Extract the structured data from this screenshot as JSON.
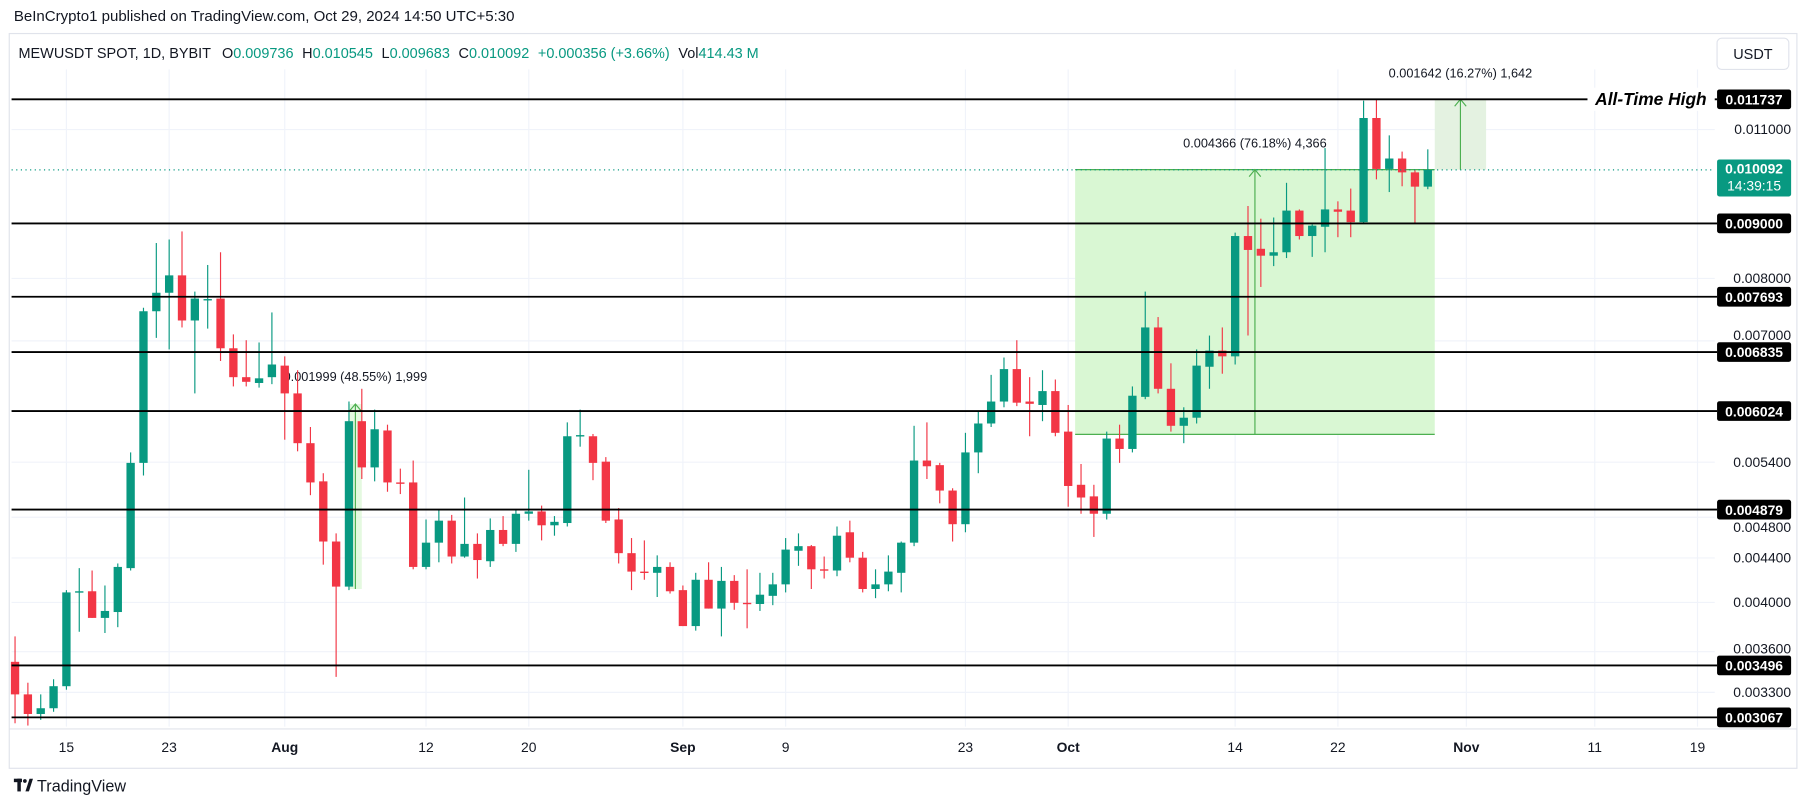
{
  "header": {
    "published": "BeInCrypto1 published on TradingView.com, Oct 29, 2024 14:50 UTC+5:30"
  },
  "legend": {
    "symbol": "MEWUSDT SPOT, 1D, BYBIT",
    "open_label": "O",
    "open": "0.009736",
    "high_label": "H",
    "high": "0.010545",
    "low_label": "L",
    "low": "0.009683",
    "close_label": "C",
    "close": "0.010092",
    "change": "+0.000356 (+3.66%)",
    "volume_label": "Vol",
    "volume": "414.43 M"
  },
  "currency_button": "USDT",
  "footer": {
    "logo_text": "TradingView",
    "logo_icon": "tradingview-logo-icon"
  },
  "chart_data": {
    "type": "candlestick",
    "title": "",
    "xlabel": "",
    "ylabel": "",
    "y_scale": "log",
    "ylim": [
      0.00303,
      0.0121
    ],
    "grid": true,
    "colors": {
      "up": "#089981",
      "down": "#f23645",
      "level_line": "#000000",
      "measure_fill": "#d9f7d3",
      "measure_line": "#4caf50",
      "measure_fill_alt": "#e4f2e1"
    },
    "y_ticks": [
      "0.011000",
      "0.008000",
      "0.007000",
      "0.005400",
      "0.004800",
      "0.004400",
      "0.004000",
      "0.003600",
      "0.003300"
    ],
    "x_ticks": [
      {
        "label": "15",
        "date": "2024-07-15",
        "bold": false
      },
      {
        "label": "23",
        "date": "2024-07-23",
        "bold": false
      },
      {
        "label": "Aug",
        "date": "2024-08-01",
        "bold": true
      },
      {
        "label": "12",
        "date": "2024-08-12",
        "bold": false
      },
      {
        "label": "20",
        "date": "2024-08-20",
        "bold": false
      },
      {
        "label": "Sep",
        "date": "2024-09-01",
        "bold": true
      },
      {
        "label": "9",
        "date": "2024-09-09",
        "bold": false
      },
      {
        "label": "23",
        "date": "2024-09-23",
        "bold": false
      },
      {
        "label": "Oct",
        "date": "2024-10-01",
        "bold": true
      },
      {
        "label": "14",
        "date": "2024-10-14",
        "bold": false
      },
      {
        "label": "22",
        "date": "2024-10-22",
        "bold": false
      },
      {
        "label": "Nov",
        "date": "2024-11-01",
        "bold": true
      },
      {
        "label": "11",
        "date": "2024-11-11",
        "bold": false
      },
      {
        "label": "19",
        "date": "2024-11-19",
        "bold": false
      }
    ],
    "candles_columns": [
      "date",
      "open",
      "high",
      "low",
      "close"
    ],
    "candles": [
      [
        "2024-07-11",
        0.003523,
        0.00372,
        0.003089,
        0.003286
      ],
      [
        "2024-07-12",
        0.003286,
        0.003369,
        0.003074,
        0.003151
      ],
      [
        "2024-07-13",
        0.003151,
        0.003286,
        0.003112,
        0.00319
      ],
      [
        "2024-07-14",
        0.00319,
        0.003394,
        0.003166,
        0.003344
      ],
      [
        "2024-07-15",
        0.003344,
        0.004107,
        0.003319,
        0.004087
      ],
      [
        "2024-07-16",
        0.004087,
        0.004305,
        0.003757,
        0.004097
      ],
      [
        "2024-07-17",
        0.004097,
        0.004283,
        0.00387,
        0.00387
      ],
      [
        "2024-07-18",
        0.00387,
        0.004148,
        0.003747,
        0.003928
      ],
      [
        "2024-07-19",
        0.003919,
        0.004348,
        0.003794,
        0.004316
      ],
      [
        "2024-07-20",
        0.004305,
        0.005514,
        0.004283,
        0.005392
      ],
      [
        "2024-07-21",
        0.005392,
        0.007513,
        0.005248,
        0.007458
      ],
      [
        "2024-07-22",
        0.007458,
        0.00863,
        0.007045,
        0.007759
      ],
      [
        "2024-07-23",
        0.007759,
        0.008695,
        0.006873,
        0.008053
      ],
      [
        "2024-07-24",
        0.008053,
        0.008847,
        0.007204,
        0.007312
      ],
      [
        "2024-07-25",
        0.007312,
        0.007778,
        0.006256,
        0.007663
      ],
      [
        "2024-07-26",
        0.00765,
        0.008234,
        0.007186,
        0.007655
      ],
      [
        "2024-07-27",
        0.007663,
        0.008461,
        0.006705,
        0.00689
      ],
      [
        "2024-07-28",
        0.00689,
        0.007098,
        0.00635,
        0.006477
      ],
      [
        "2024-07-29",
        0.006477,
        0.00701,
        0.00635,
        0.006413
      ],
      [
        "2024-07-30",
        0.006397,
        0.006976,
        0.006334,
        0.006461
      ],
      [
        "2024-07-31",
        0.006477,
        0.007439,
        0.006381,
        0.006655
      ],
      [
        "2024-08-01",
        0.006639,
        0.006772,
        0.005666,
        0.006256
      ],
      [
        "2024-08-02",
        0.006256,
        0.006574,
        0.005527,
        0.005624
      ],
      [
        "2024-08-03",
        0.005624,
        0.005822,
        0.005032,
        0.005171
      ],
      [
        "2024-08-04",
        0.005183,
        0.005274,
        0.004337,
        0.004557
      ],
      [
        "2024-08-05",
        0.004557,
        0.004637,
        0.003411,
        0.004138
      ],
      [
        "2024-08-06",
        0.004138,
        0.006148,
        0.004107,
        0.005895
      ],
      [
        "2024-08-07",
        0.005895,
        0.006318,
        0.005209,
        0.00534
      ],
      [
        "2024-08-08",
        0.00534,
        0.006043,
        0.005183,
        0.005794
      ],
      [
        "2024-08-09",
        0.005779,
        0.005851,
        0.005069,
        0.005171
      ],
      [
        "2024-08-10",
        0.005171,
        0.005326,
        0.005044,
        0.005158
      ],
      [
        "2024-08-11",
        0.005171,
        0.005419,
        0.004294,
        0.004316
      ],
      [
        "2024-08-12",
        0.004316,
        0.004777,
        0.004294,
        0.004546
      ],
      [
        "2024-08-13",
        0.004546,
        0.004872,
        0.004359,
        0.004765
      ],
      [
        "2024-08-14",
        0.004765,
        0.004824,
        0.004348,
        0.004413
      ],
      [
        "2024-08-15",
        0.004413,
        0.005007,
        0.004402,
        0.004534
      ],
      [
        "2024-08-16",
        0.004534,
        0.004637,
        0.00421,
        0.00438
      ],
      [
        "2024-08-17",
        0.004369,
        0.004788,
        0.004316,
        0.004671
      ],
      [
        "2024-08-18",
        0.004671,
        0.004812,
        0.004512,
        0.004534
      ],
      [
        "2024-08-19",
        0.004534,
        0.004872,
        0.004457,
        0.004836
      ],
      [
        "2024-08-20",
        0.004836,
        0.005313,
        0.004765,
        0.00486
      ],
      [
        "2024-08-21",
        0.00486,
        0.004921,
        0.004568,
        0.004718
      ],
      [
        "2024-08-22",
        0.004718,
        0.004812,
        0.004614,
        0.004753
      ],
      [
        "2024-08-23",
        0.004741,
        0.00588,
        0.004706,
        0.005708
      ],
      [
        "2024-08-24",
        0.005708,
        0.006043,
        0.005582,
        0.005722
      ],
      [
        "2024-08-25",
        0.005708,
        0.005736,
        0.005196,
        0.005392
      ],
      [
        "2024-08-26",
        0.005406,
        0.005459,
        0.004741,
        0.004765
      ],
      [
        "2024-08-27",
        0.004777,
        0.004896,
        0.004348,
        0.004445
      ],
      [
        "2024-08-28",
        0.004445,
        0.004591,
        0.004107,
        0.004273
      ],
      [
        "2024-08-29",
        0.004273,
        0.004568,
        0.004199,
        0.004262
      ],
      [
        "2024-08-30",
        0.004262,
        0.004424,
        0.004047,
        0.004316
      ],
      [
        "2024-08-31",
        0.004316,
        0.004359,
        0.004077,
        0.004097
      ],
      [
        "2024-09-01",
        0.004107,
        0.004148,
        0.003803,
        0.003803
      ],
      [
        "2024-09-02",
        0.003803,
        0.004262,
        0.003766,
        0.004199
      ],
      [
        "2024-09-03",
        0.004199,
        0.004359,
        0.003948,
        0.003948
      ],
      [
        "2024-09-04",
        0.003948,
        0.004316,
        0.00372,
        0.004189
      ],
      [
        "2024-09-05",
        0.004189,
        0.004241,
        0.003938,
        0.003997
      ],
      [
        "2024-09-06",
        0.003997,
        0.004294,
        0.003785,
        0.003987
      ],
      [
        "2024-09-07",
        0.003987,
        0.004262,
        0.003928,
        0.004067
      ],
      [
        "2024-09-08",
        0.004057,
        0.004262,
        0.003977,
        0.004158
      ],
      [
        "2024-09-09",
        0.004158,
        0.004591,
        0.004087,
        0.004479
      ],
      [
        "2024-09-10",
        0.004468,
        0.004637,
        0.004326,
        0.004512
      ],
      [
        "2024-09-11",
        0.004512,
        0.004523,
        0.004117,
        0.004294
      ],
      [
        "2024-09-12",
        0.004294,
        0.004413,
        0.00421,
        0.004283
      ],
      [
        "2024-09-13",
        0.004283,
        0.004706,
        0.004231,
        0.004614
      ],
      [
        "2024-09-14",
        0.004648,
        0.004765,
        0.004359,
        0.004402
      ],
      [
        "2024-09-15",
        0.004402,
        0.004457,
        0.004087,
        0.004117
      ],
      [
        "2024-09-16",
        0.004117,
        0.004294,
        0.004037,
        0.004158
      ],
      [
        "2024-09-17",
        0.004158,
        0.004424,
        0.004097,
        0.004273
      ],
      [
        "2024-09-18",
        0.004262,
        0.004557,
        0.004087,
        0.004546
      ],
      [
        "2024-09-19",
        0.004546,
        0.005837,
        0.004512,
        0.005419
      ],
      [
        "2024-09-20",
        0.005419,
        0.00588,
        0.005209,
        0.005353
      ],
      [
        "2024-09-21",
        0.005366,
        0.005392,
        0.004945,
        0.005082
      ],
      [
        "2024-09-22",
        0.005082,
        0.005107,
        0.004557,
        0.004729
      ],
      [
        "2024-09-23",
        0.004729,
        0.00575,
        0.004648,
        0.005514
      ],
      [
        "2024-09-24",
        0.005514,
        0.006028,
        0.005274,
        0.005866
      ],
      [
        "2024-09-25",
        0.005866,
        0.006509,
        0.005822,
        0.006148
      ],
      [
        "2024-09-26",
        0.006148,
        0.006755,
        0.006073,
        0.00659
      ],
      [
        "2024-09-27",
        0.00659,
        0.00701,
        0.006088,
        0.006133
      ],
      [
        "2024-09-28",
        0.006148,
        0.006477,
        0.005708,
        0.006118
      ],
      [
        "2024-09-29",
        0.006103,
        0.006574,
        0.005895,
        0.006287
      ],
      [
        "2024-09-30",
        0.006287,
        0.006445,
        0.005708,
        0.00575
      ],
      [
        "2024-10-01",
        0.005765,
        0.006103,
        0.004909,
        0.005132
      ],
      [
        "2024-10-02",
        0.005145,
        0.005379,
        0.004836,
        0.005007
      ],
      [
        "2024-10-03",
        0.005019,
        0.005145,
        0.004602,
        0.004836
      ],
      [
        "2024-10-04",
        0.004836,
        0.005765,
        0.004777,
        0.00568
      ],
      [
        "2024-10-05",
        0.00568,
        0.005851,
        0.005392,
        0.005555
      ],
      [
        "2024-10-06",
        0.005555,
        0.00635,
        0.005514,
        0.006225
      ],
      [
        "2024-10-07",
        0.00621,
        0.007778,
        0.006179,
        0.007204
      ],
      [
        "2024-10-08",
        0.007204,
        0.007366,
        0.006256,
        0.006318
      ],
      [
        "2024-10-09",
        0.006318,
        0.006672,
        0.005765,
        0.005837
      ],
      [
        "2024-10-10",
        0.005837,
        0.006073,
        0.005624,
        0.005939
      ],
      [
        "2024-10-11",
        0.005939,
        0.006873,
        0.005866,
        0.006639
      ],
      [
        "2024-10-12",
        0.006623,
        0.00708,
        0.006318,
        0.006856
      ],
      [
        "2024-10-13",
        0.006856,
        0.007204,
        0.006525,
        0.006772
      ],
      [
        "2024-10-14",
        0.006772,
        0.008825,
        0.006655,
        0.00876
      ],
      [
        "2024-10-15",
        0.00876,
        0.009342,
        0.00708,
        0.008503
      ],
      [
        "2024-10-16",
        0.008524,
        0.009091,
        0.007856,
        0.008399
      ],
      [
        "2024-10-17",
        0.008399,
        0.009114,
        0.008214,
        0.008461
      ],
      [
        "2024-10-18",
        0.008461,
        0.009816,
        0.008357,
        0.00925
      ],
      [
        "2024-10-19",
        0.00925,
        0.009273,
        0.008695,
        0.00876
      ],
      [
        "2024-10-20",
        0.00876,
        0.008979,
        0.008378,
        0.008957
      ],
      [
        "2024-10-21",
        0.008935,
        0.010573,
        0.008461,
        0.009273
      ],
      [
        "2024-10-22",
        0.009273,
        0.009435,
        0.008738,
        0.009227
      ],
      [
        "2024-10-23",
        0.00925,
        0.009696,
        0.008738,
        0.009024
      ],
      [
        "2024-10-24",
        0.009024,
        0.011702,
        0.009002,
        0.011276
      ],
      [
        "2024-10-25",
        0.011276,
        0.011737,
        0.009889,
        0.010112
      ],
      [
        "2024-10-26",
        0.010112,
        0.010865,
        0.009624,
        0.01034
      ],
      [
        "2024-10-27",
        0.01034,
        0.010494,
        0.009744,
        0.010038
      ],
      [
        "2024-10-28",
        0.010038,
        0.010087,
        0.009002,
        0.009736
      ],
      [
        "2024-10-29",
        0.009736,
        0.010545,
        0.009683,
        0.010092
      ]
    ],
    "levels": [
      {
        "price": 0.011737,
        "label": "0.011737"
      },
      {
        "price": 0.009,
        "label": "0.009000"
      },
      {
        "price": 0.007693,
        "label": "0.007693"
      },
      {
        "price": 0.006835,
        "label": "0.006835"
      },
      {
        "price": 0.006024,
        "label": "0.006024"
      },
      {
        "price": 0.004879,
        "label": "0.004879"
      },
      {
        "price": 0.003496,
        "label": "0.003496"
      },
      {
        "price": 0.003067,
        "label": "0.003067"
      }
    ],
    "ath_label": "All-Time High",
    "current_price": {
      "value": 0.010092,
      "label": "0.010092",
      "countdown": "14:39:15"
    },
    "measurements": [
      {
        "from_price": 0.004117,
        "to_price": 0.006116,
        "start_date": "2024-08-06",
        "end_date": "2024-08-07",
        "label": "0.001999 (48.55%) 1,999"
      },
      {
        "from_price": 0.005731,
        "to_price": 0.010097,
        "start_date": "2024-10-01",
        "end_date": "2024-10-29",
        "label": "0.004366 (76.18%) 4,366"
      },
      {
        "from_price": 0.010095,
        "to_price": 0.011737,
        "start_date": "2024-10-29",
        "end_date": "2024-11-02",
        "label": "0.001642 (16.27%) 1,642"
      }
    ]
  }
}
